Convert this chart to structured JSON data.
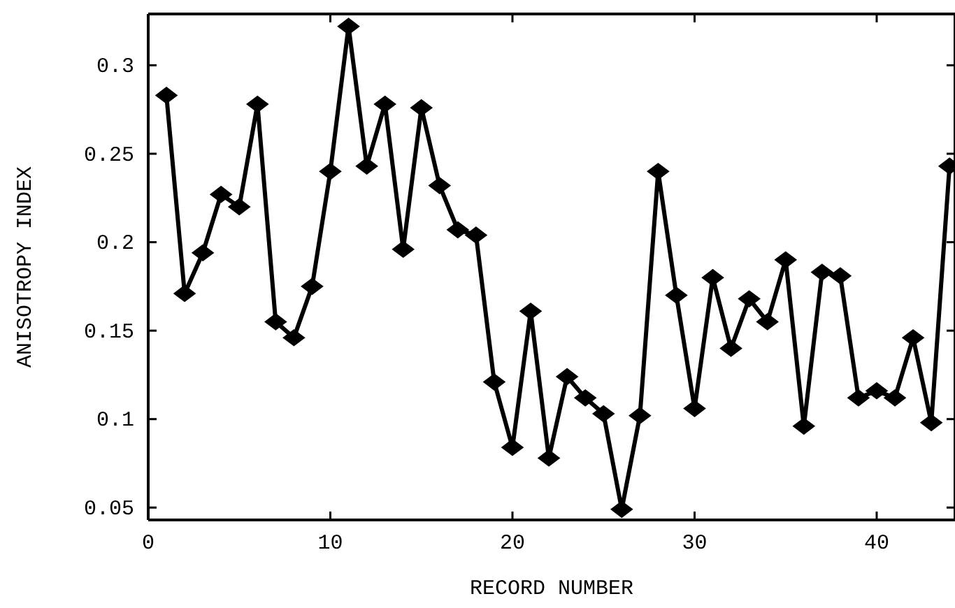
{
  "chart_data": {
    "type": "line",
    "xlabel": "RECORD NUMBER",
    "ylabel": "ANISOTROPY INDEX",
    "x": [
      1,
      2,
      3,
      4,
      5,
      6,
      7,
      8,
      9,
      10,
      11,
      12,
      13,
      14,
      15,
      16,
      17,
      18,
      19,
      20,
      21,
      22,
      23,
      24,
      25,
      26,
      27,
      28,
      29,
      30,
      31,
      32,
      33,
      34,
      35,
      36,
      37,
      38,
      39,
      40,
      41,
      42,
      43,
      44
    ],
    "series": [
      {
        "color": "#000000",
        "values": [
          0.283,
          0.171,
          0.194,
          0.227,
          0.22,
          0.278,
          0.155,
          0.146,
          0.175,
          0.24,
          0.322,
          0.243,
          0.278,
          0.196,
          0.276,
          0.232,
          0.207,
          0.204,
          0.121,
          0.084,
          0.161,
          0.078,
          0.124,
          0.112,
          0.103,
          0.049,
          0.102,
          0.24,
          0.17,
          0.106,
          0.18,
          0.14,
          0.168,
          0.155,
          0.19,
          0.096,
          0.183,
          0.181,
          0.112,
          0.116,
          0.112,
          0.146,
          0.098,
          0.243
        ]
      }
    ],
    "xlim": [
      0,
      44.3
    ],
    "ylim": [
      0.043,
      0.329
    ],
    "xticks": [
      0,
      10,
      20,
      30,
      40
    ],
    "yticks": [
      0.05,
      0.1,
      0.15,
      0.2,
      0.25,
      0.3
    ],
    "marker": "diamond",
    "line_style": "solid"
  }
}
